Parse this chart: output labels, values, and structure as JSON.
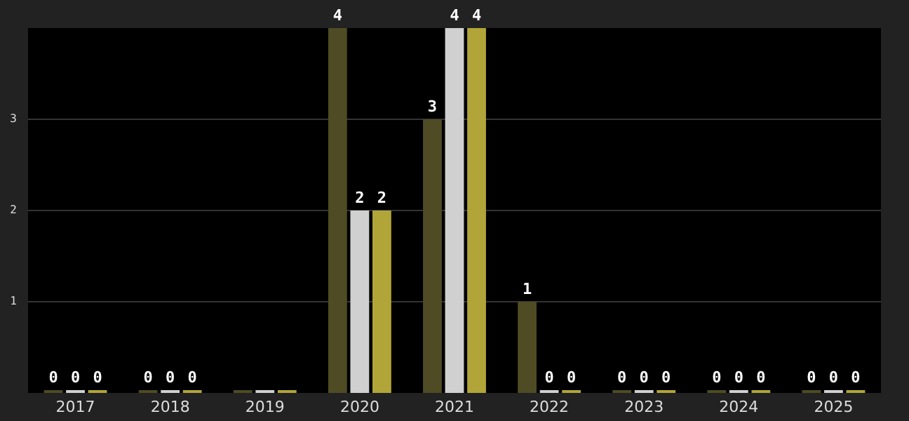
{
  "chart_data": {
    "type": "bar",
    "categories": [
      "2017",
      "2018",
      "2019",
      "2020",
      "2021",
      "2022",
      "2023",
      "2024",
      "2025"
    ],
    "series": [
      {
        "color": "#4f4b24",
        "values": [
          0,
          0,
          0,
          4,
          3,
          1,
          0,
          0,
          0
        ],
        "value_labels": [
          "0",
          "0",
          null,
          "4",
          "3",
          "1",
          "0",
          "0",
          "0"
        ]
      },
      {
        "color": "#d0d0d0",
        "values": [
          0,
          0,
          0,
          2,
          4,
          0,
          0,
          0,
          0
        ],
        "value_labels": [
          "0",
          "0",
          null,
          "2",
          "4",
          "0",
          "0",
          "0",
          "0"
        ]
      },
      {
        "color": "#b1a53a",
        "values": [
          0,
          0,
          0,
          2,
          4,
          0,
          0,
          0,
          0
        ],
        "value_labels": [
          "0",
          "0",
          null,
          "2",
          "4",
          "0",
          "0",
          "0",
          "0"
        ]
      }
    ],
    "ylim": [
      0,
      4
    ],
    "yticks": [
      1,
      2,
      3
    ],
    "grid": "y",
    "legend": false
  }
}
